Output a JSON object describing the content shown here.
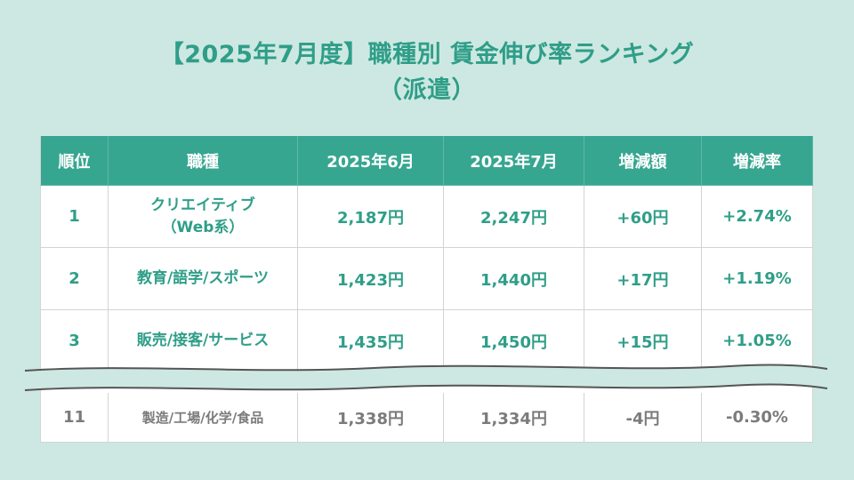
{
  "title": {
    "line1": "【2025年7月度】職種別 賃金伸び率ランキング",
    "line2": "（派遣）"
  },
  "colors": {
    "accent": "#37a690",
    "accent_text": "#2f9e88",
    "background": "#cde8e2",
    "muted_text": "#7b7b7b"
  },
  "table": {
    "headers": [
      "順位",
      "職種",
      "2025年6月",
      "2025年7月",
      "増減額",
      "増減率"
    ],
    "rows": [
      {
        "rank": "1",
        "job_line1": "クリエイティブ",
        "job_line2": "（Web系）",
        "june": "2,187円",
        "july": "2,247円",
        "diff": "+60円",
        "rate": "+2.74%"
      },
      {
        "rank": "2",
        "job_line1": "教育/語学/スポーツ",
        "job_line2": "",
        "june": "1,423円",
        "july": "1,440円",
        "diff": "+17円",
        "rate": "+1.19%"
      },
      {
        "rank": "3",
        "job_line1": "販売/接客/サービス",
        "job_line2": "",
        "june": "1,435円",
        "july": "1,450円",
        "diff": "+15円",
        "rate": "+1.05%"
      }
    ],
    "last_row": {
      "rank": "11",
      "job": "製造/工場/化学/食品",
      "june": "1,338円",
      "july": "1,334円",
      "diff": "-4円",
      "rate": "-0.30%"
    }
  }
}
